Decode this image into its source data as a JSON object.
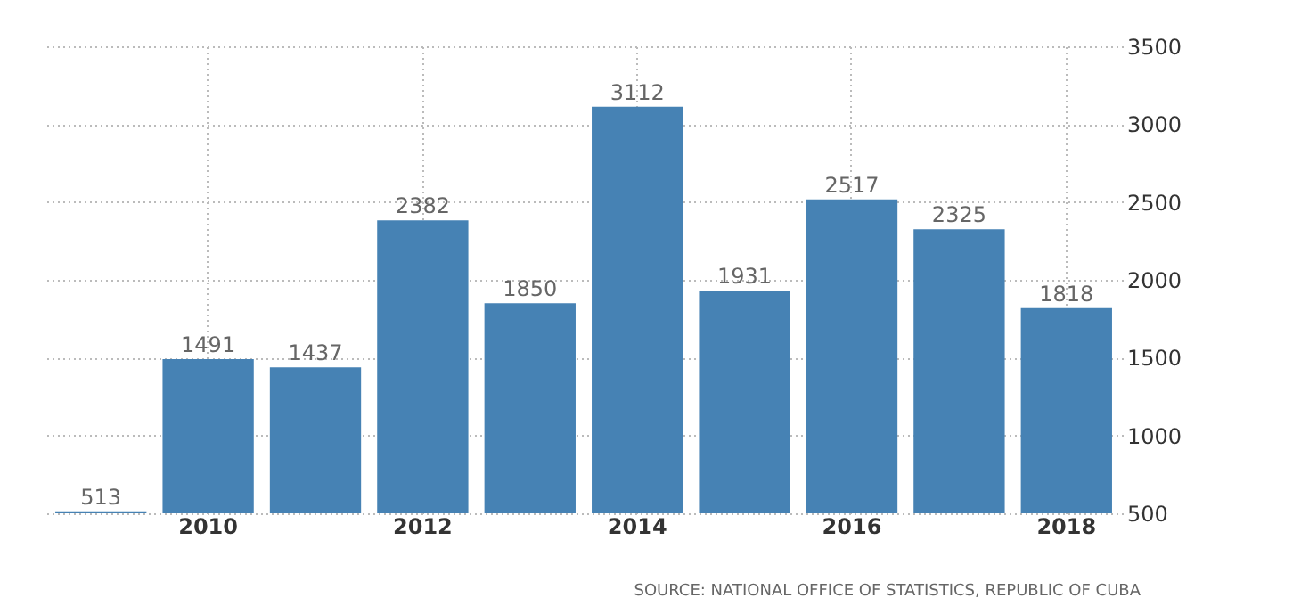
{
  "chart_data": {
    "type": "bar",
    "categories": [
      null,
      "2010",
      null,
      "2012",
      null,
      "2014",
      null,
      "2016",
      null,
      "2018"
    ],
    "values": [
      513,
      1491,
      1437,
      2382,
      1850,
      3112,
      1931,
      2517,
      2325,
      1818
    ],
    "color": "#4682b4",
    "ylim": [
      500,
      3500
    ],
    "yticks": [
      500,
      1000,
      1500,
      2000,
      2500,
      3000,
      3500
    ],
    "grid": true,
    "data_labels": true,
    "annotations": [
      "SOURCE: NATIONAL OFFICE OF STATISTICS, REPUBLIC OF CUBA"
    ]
  }
}
